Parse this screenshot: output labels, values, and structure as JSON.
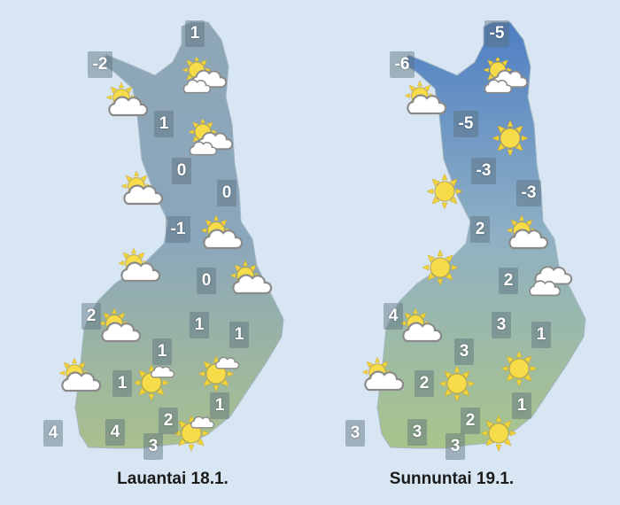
{
  "maps": [
    {
      "caption": "Lauantai 18.1.",
      "colors": {
        "top": "#8fa7b6",
        "middle": "#8aa6bd",
        "bottom": "#a9c08e"
      },
      "temperatures": [
        "1",
        "-2",
        "1",
        "0",
        "0",
        "-1",
        "0",
        "2",
        "1",
        "1",
        "1",
        "1",
        "1",
        "2",
        "4",
        "4",
        "3"
      ],
      "icons": [
        "partly-cloudy-icon",
        "partly-cloudy-icon",
        "partly-cloudy-icon",
        "partly-cloudy-icon",
        "partly-cloudy-icon",
        "partly-cloudy-icon",
        "partly-cloudy-icon",
        "partly-cloudy-icon",
        "partly-cloudy-icon",
        "mostly-sunny-icon",
        "mostly-sunny-icon",
        "mostly-sunny-icon"
      ]
    },
    {
      "caption": "Sunnuntai 19.1.",
      "colors": {
        "top": "#4f7fc4",
        "middle": "#8fb0c4",
        "bottom": "#a9c48a"
      },
      "temperatures": [
        "-5",
        "-6",
        "-5",
        "-3",
        "-3",
        "2",
        "2",
        "4",
        "3",
        "1",
        "3",
        "2",
        "1",
        "2",
        "3",
        "3",
        "3"
      ],
      "icons": [
        "partly-cloudy-icon",
        "partly-cloudy-icon",
        "sun-icon",
        "sun-icon",
        "partly-cloudy-icon",
        "sun-icon",
        "cloudy-icon",
        "partly-cloudy-icon",
        "partly-cloudy-icon",
        "sun-icon",
        "sun-icon",
        "sun-icon"
      ]
    }
  ]
}
